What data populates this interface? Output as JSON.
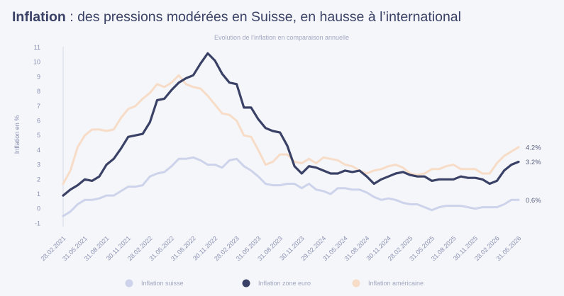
{
  "title_bold": "Inflation",
  "title_rest": " : des pressions modérées en Suisse, en hausse à l’international",
  "chart_data": {
    "type": "line",
    "title": "Inflation : des pressions modérées en Suisse, en hausse à l’international",
    "subtitle": "Evolution de l’inflation en comparaison annuelle",
    "ylabel": "Inflation en %",
    "xlabel": "",
    "ylim": [
      -1,
      11
    ],
    "yticks": [
      -1,
      0,
      1,
      2,
      3,
      4,
      5,
      6,
      7,
      8,
      9,
      10,
      11
    ],
    "xtick_labels": [
      "28.02.2021",
      "31.05.2021",
      "31.08.2021",
      "30.11.2021",
      "28.02.2022",
      "31.05.2022",
      "31.08.2022",
      "30.11.2022",
      "28.02.2023",
      "31.05.2023",
      "31.08.2023",
      "30.11.2023",
      "29.02.2024",
      "31.05.2024",
      "31.08.2024",
      "30.11.2024",
      "28.02.2025",
      "31.05.2025",
      "31.08.2025",
      "30.11.2025",
      "28.02.2026",
      "31.05.2026"
    ],
    "grid": false,
    "legend_position": "bottom",
    "series": [
      {
        "name": "Inflation suisse",
        "color": "#cdd3ea",
        "end_label": "0.6%",
        "values": [
          -0.5,
          -0.2,
          0.3,
          0.6,
          0.6,
          0.7,
          0.9,
          0.9,
          1.2,
          1.5,
          1.5,
          1.6,
          2.2,
          2.4,
          2.5,
          2.9,
          3.4,
          3.4,
          3.5,
          3.3,
          3.0,
          3.0,
          2.8,
          3.3,
          3.4,
          2.9,
          2.6,
          2.2,
          1.7,
          1.6,
          1.6,
          1.7,
          1.7,
          1.4,
          1.7,
          1.3,
          1.2,
          1.0,
          1.4,
          1.4,
          1.3,
          1.3,
          1.1,
          0.8,
          0.6,
          0.7,
          0.6,
          0.4,
          0.3,
          0.3,
          0.1,
          -0.1,
          0.1,
          0.2,
          0.2,
          0.2,
          0.1,
          0.0,
          0.1,
          0.1,
          0.1,
          0.3,
          0.6,
          0.6
        ]
      },
      {
        "name": "Inflation zone euro",
        "color": "#3a4166",
        "end_label": "3.2%",
        "values": [
          0.9,
          1.3,
          1.6,
          2.0,
          1.9,
          2.2,
          3.0,
          3.4,
          4.1,
          4.9,
          5.0,
          5.1,
          5.9,
          7.4,
          7.5,
          8.1,
          8.6,
          8.9,
          9.1,
          9.9,
          10.6,
          10.1,
          9.2,
          8.6,
          8.5,
          6.9,
          6.9,
          6.1,
          5.5,
          5.3,
          5.2,
          4.3,
          2.9,
          2.4,
          2.9,
          2.8,
          2.6,
          2.4,
          2.4,
          2.6,
          2.5,
          2.6,
          2.2,
          1.7,
          2.0,
          2.2,
          2.4,
          2.5,
          2.3,
          2.2,
          2.2,
          1.9,
          2.0,
          2.0,
          2.0,
          2.2,
          2.1,
          2.1,
          2.0,
          1.7,
          1.9,
          2.6,
          3.0,
          3.2
        ]
      },
      {
        "name": "Inflation américaine",
        "color": "#f7dcc8",
        "end_label": "4.2%",
        "values": [
          1.7,
          2.6,
          4.2,
          5.0,
          5.4,
          5.4,
          5.3,
          5.4,
          6.2,
          6.8,
          7.0,
          7.5,
          7.9,
          8.5,
          8.3,
          8.6,
          9.1,
          8.5,
          8.3,
          8.2,
          7.7,
          7.1,
          6.5,
          6.4,
          6.0,
          5.0,
          4.9,
          4.0,
          3.0,
          3.2,
          3.7,
          3.7,
          3.2,
          3.1,
          3.4,
          3.1,
          3.5,
          3.4,
          3.3,
          3.0,
          2.9,
          2.6,
          2.4,
          2.6,
          2.7,
          2.9,
          3.0,
          2.8,
          2.4,
          2.3,
          2.4,
          2.7,
          2.7,
          2.9,
          3.0,
          2.7,
          2.7,
          2.7,
          2.4,
          2.4,
          3.1,
          3.6,
          3.9,
          4.2
        ]
      }
    ]
  }
}
